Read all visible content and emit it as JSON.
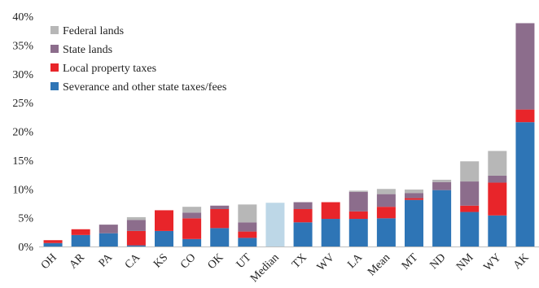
{
  "chart_data": {
    "type": "bar",
    "stacked": true,
    "categories": [
      "OH",
      "AR",
      "PA",
      "CA",
      "KS",
      "CO",
      "OK",
      "UT",
      "Median",
      "TX",
      "WV",
      "LA",
      "Mean",
      "MT",
      "ND",
      "NM",
      "WY",
      "AK"
    ],
    "series": [
      {
        "name": "Severance and other state taxes/fees",
        "color": "#2E75B6",
        "values": [
          0.6,
          2.0,
          2.3,
          0.2,
          2.7,
          1.3,
          3.2,
          1.5,
          0,
          4.2,
          4.8,
          4.8,
          4.9,
          8.1,
          9.8,
          6.0,
          5.4,
          21.6
        ]
      },
      {
        "name": "Local property taxes",
        "color": "#E8252A",
        "values": [
          0.5,
          1.0,
          0,
          2.5,
          3.6,
          3.6,
          3.3,
          1.1,
          0,
          2.3,
          2.9,
          1.3,
          2.0,
          0.3,
          0,
          1.1,
          5.7,
          2.2
        ]
      },
      {
        "name": "State lands",
        "color": "#8C6D8C",
        "values": [
          0,
          0,
          1.5,
          1.9,
          0,
          1.0,
          0.6,
          1.6,
          0,
          1.2,
          0,
          3.4,
          2.2,
          0.9,
          1.4,
          4.2,
          1.2,
          15.0
        ]
      },
      {
        "name": "Federal lands",
        "color": "#B7B7B7",
        "values": [
          0,
          0,
          0,
          0.5,
          0,
          1.0,
          0,
          3.1,
          0,
          0,
          0,
          0.2,
          0.9,
          0.6,
          0.4,
          3.5,
          4.3,
          0
        ]
      }
    ],
    "special_bars": [
      {
        "category": "Median",
        "value": 7.6,
        "color": "#BDD7E7"
      }
    ],
    "y_ticks": [
      "0%",
      "5%",
      "10%",
      "15%",
      "20%",
      "25%",
      "30%",
      "35%",
      "40%"
    ],
    "ylim": [
      0,
      40
    ],
    "legend_order": [
      "Federal lands",
      "State lands",
      "Local property taxes",
      "Severance and other state taxes/fees"
    ],
    "legend_position": "top-left",
    "grid": false
  }
}
